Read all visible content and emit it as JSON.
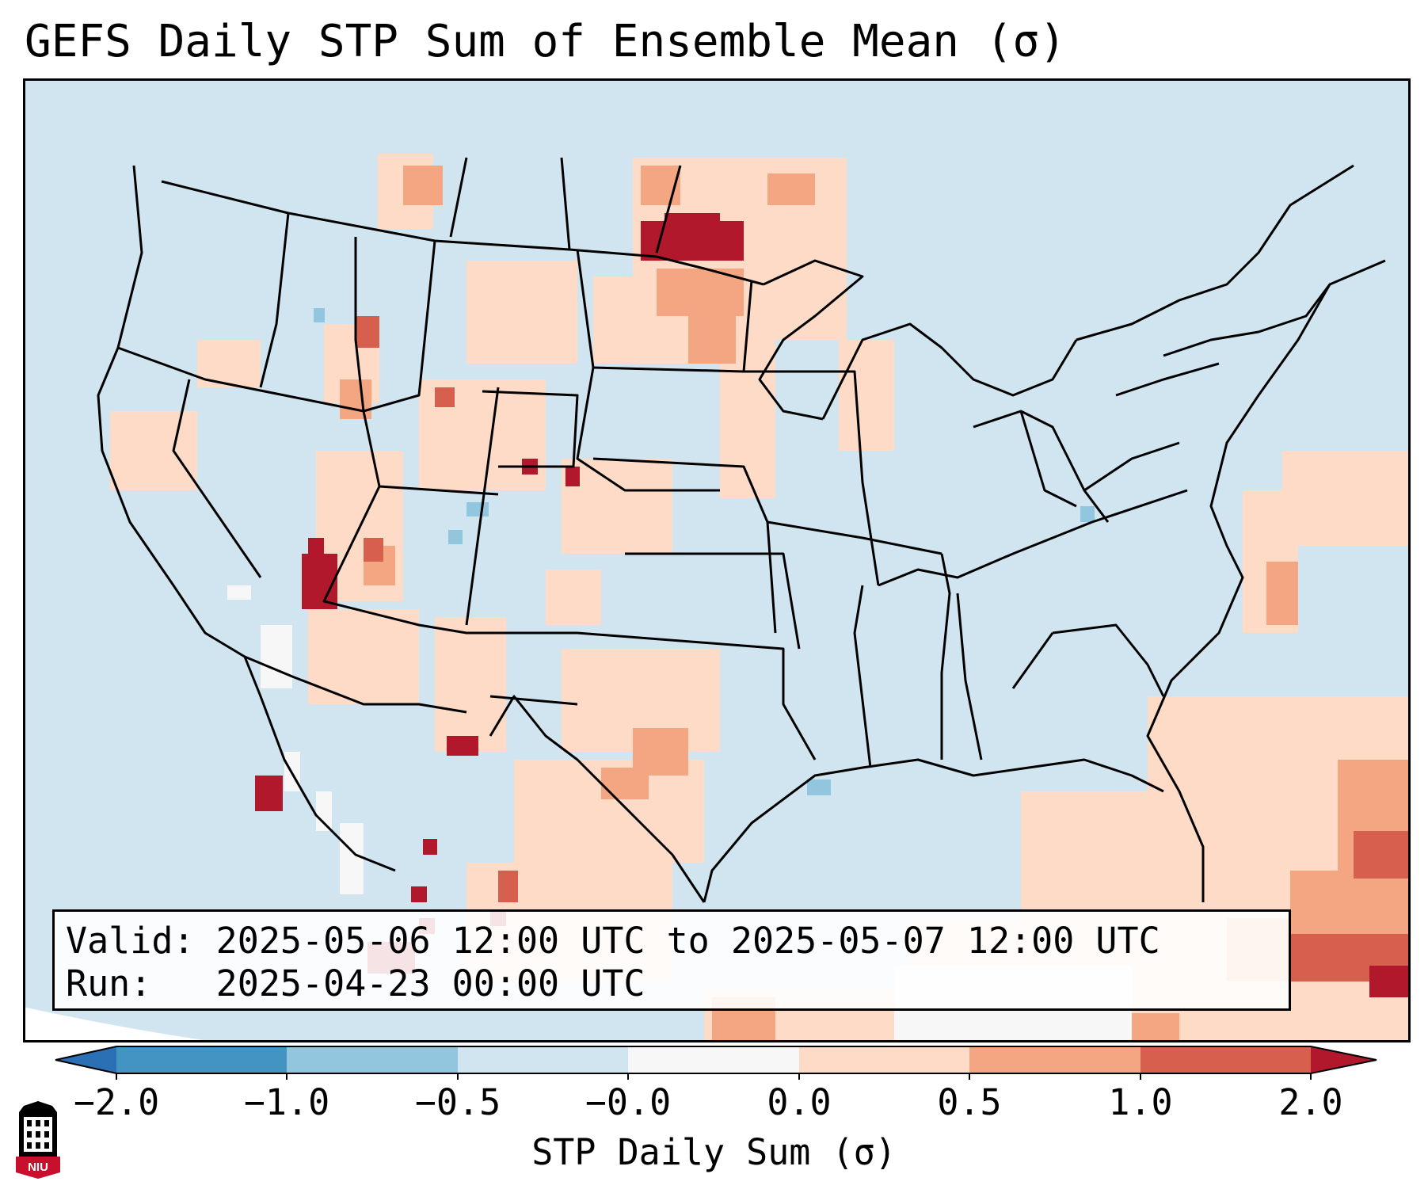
{
  "title": "GEFS Daily STP Sum of Ensemble Mean (σ)",
  "info": {
    "valid": "Valid: 2025-05-06 12:00 UTC to 2025-05-07 12:00 UTC",
    "run": "Run:   2025-04-23 00:00 UTC"
  },
  "colorbar": {
    "label": "STP Daily Sum (σ)",
    "ticks": [
      "−2.0",
      "−1.0",
      "−0.5",
      "−0.0",
      "0.0",
      "0.5",
      "1.0",
      "2.0"
    ],
    "bins": [
      {
        "from": "-inf",
        "to": -2.0,
        "color": "#2b6fb5"
      },
      {
        "from": -2.0,
        "to": -1.0,
        "color": "#4393c3"
      },
      {
        "from": -1.0,
        "to": -0.5,
        "color": "#92c5de"
      },
      {
        "from": -0.5,
        "to": 0.0,
        "color": "#d1e5f0"
      },
      {
        "from": 0.0,
        "to": 0.0,
        "color": "#f7f7f7"
      },
      {
        "from": 0.0,
        "to": 0.5,
        "color": "#fddbc7"
      },
      {
        "from": 0.5,
        "to": 1.0,
        "color": "#f4a582"
      },
      {
        "from": 1.0,
        "to": 2.0,
        "color": "#d6604d"
      },
      {
        "from": 2.0,
        "to": "inf",
        "color": "#b2182b"
      }
    ]
  },
  "map": {
    "projection": "Lambert Conformal",
    "region": "Contiguous United States, southern Canada, northern Mexico",
    "background_color": "#d1e5f0",
    "highlights": [
      {
        "area": "North Dakota",
        "level": "> 2.0"
      },
      {
        "area": "Arizona",
        "level": "> 2.0"
      },
      {
        "area": "Gulf of California",
        "level": "> 2.0"
      },
      {
        "area": "Texas Panhandle / West Texas",
        "level": "0.5 to 1.0"
      },
      {
        "area": "Caribbean / Gulf of Mexico",
        "level": "0.5 to 2.0"
      }
    ]
  },
  "logo": {
    "text": "NIU",
    "colors": [
      "#c8102e",
      "#000000"
    ]
  }
}
